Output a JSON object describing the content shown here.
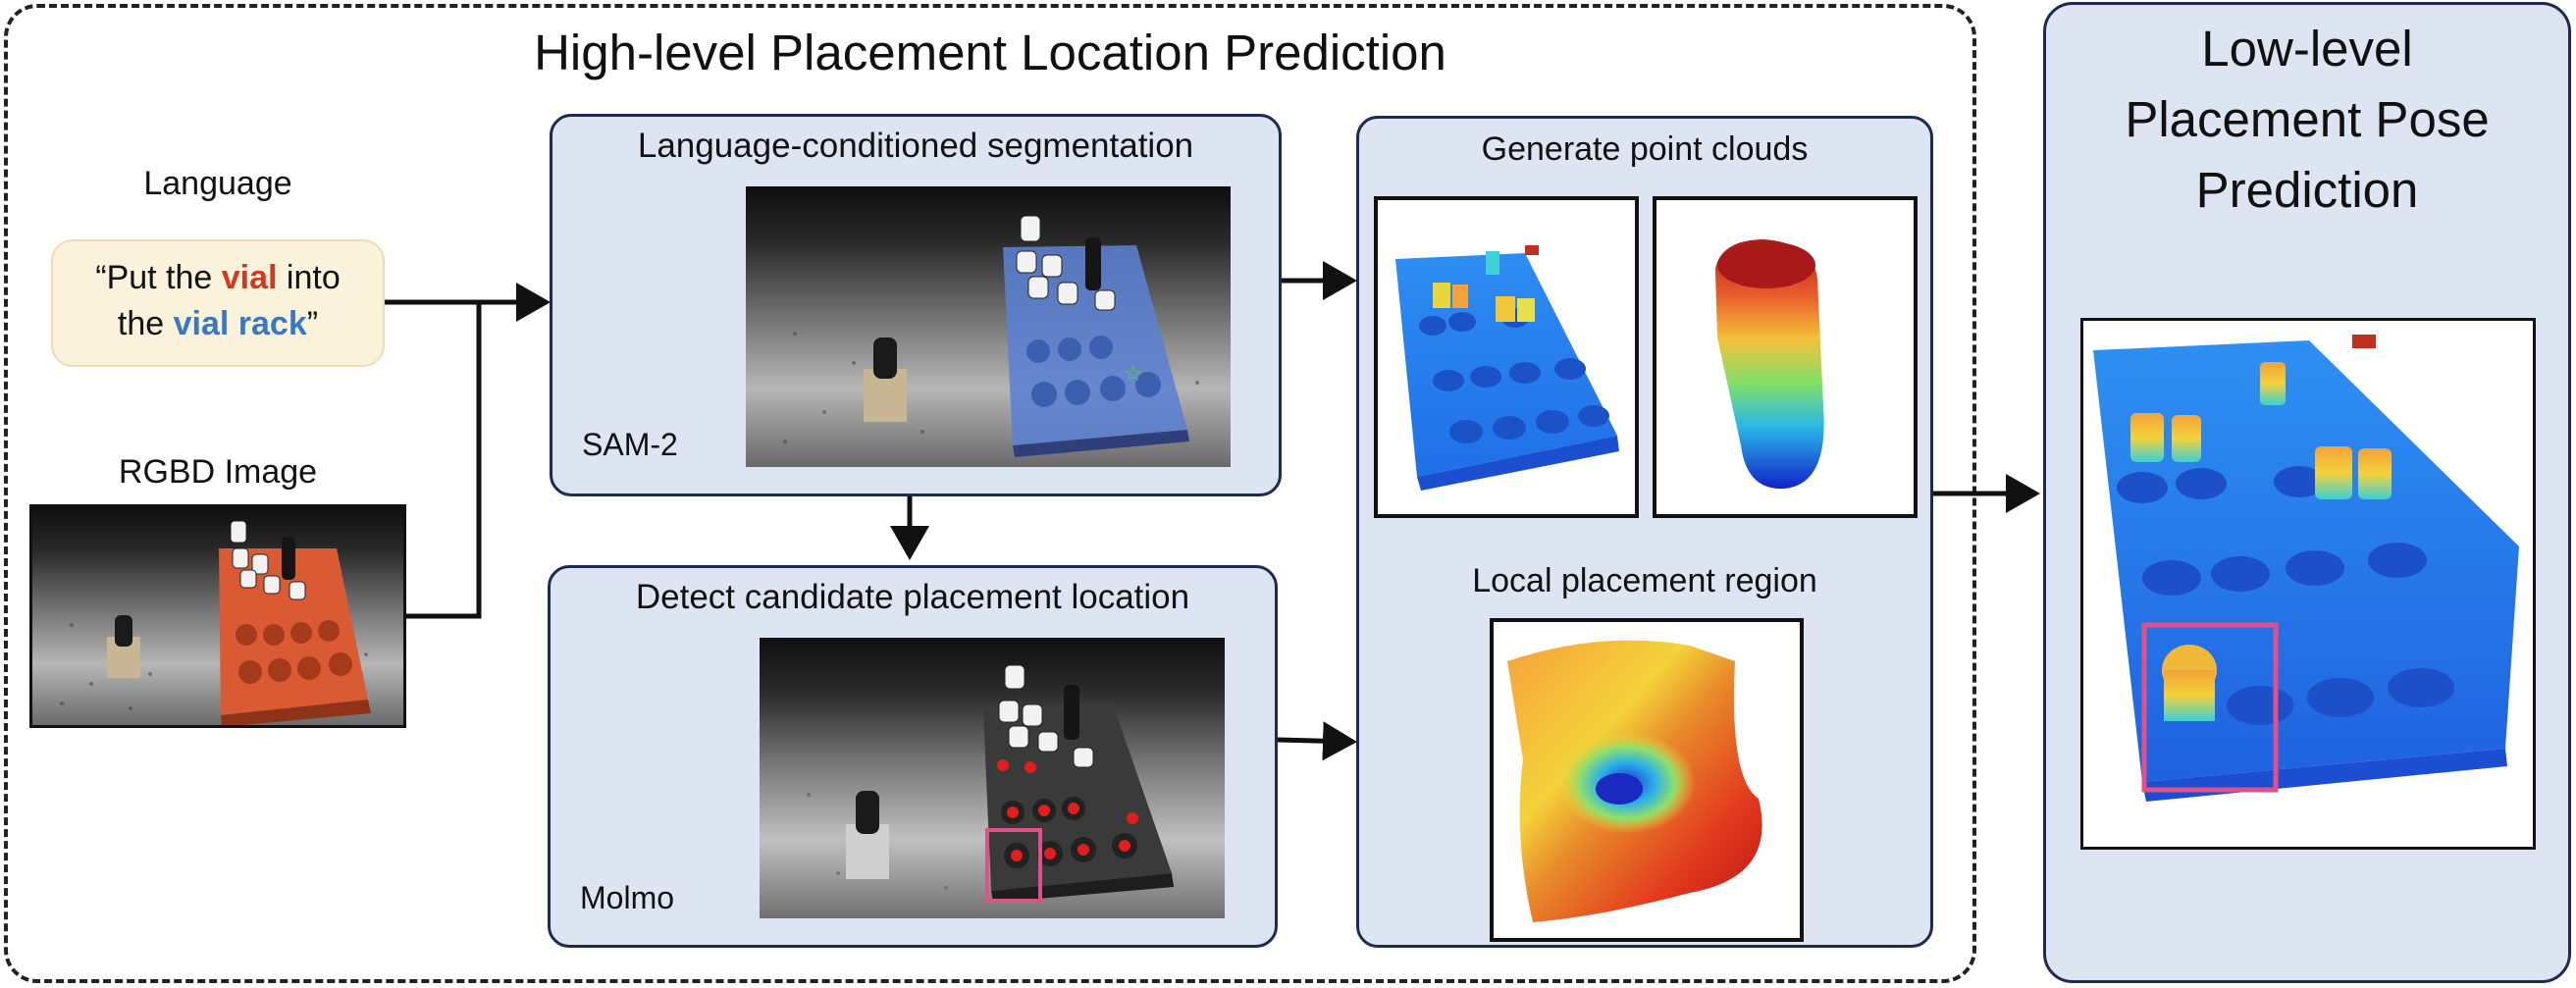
{
  "high_level": {
    "title": "High-level Placement Location Prediction"
  },
  "language": {
    "label": "Language",
    "quote_open": "“Put the ",
    "object": "vial",
    "middle": " into",
    "line2_pre": "the ",
    "target": "vial rack",
    "quote_close": "”"
  },
  "rgbd": {
    "label": "RGBD Image"
  },
  "segmentation": {
    "title": "Language-conditioned segmentation",
    "model": "SAM-2"
  },
  "detection": {
    "title": "Detect candidate placement location",
    "model": "Molmo"
  },
  "point_clouds": {
    "title": "Generate point clouds",
    "region_title": "Local placement region"
  },
  "low_level": {
    "title_lines": [
      "Low-level",
      "Placement Pose",
      "Prediction"
    ]
  },
  "colors": {
    "panel_fill": "#dde4f2",
    "panel_border": "#1e2a52",
    "highlight": "#e0508a",
    "vial_red": "#d03a22",
    "vial_blue": "#3a78c0"
  }
}
